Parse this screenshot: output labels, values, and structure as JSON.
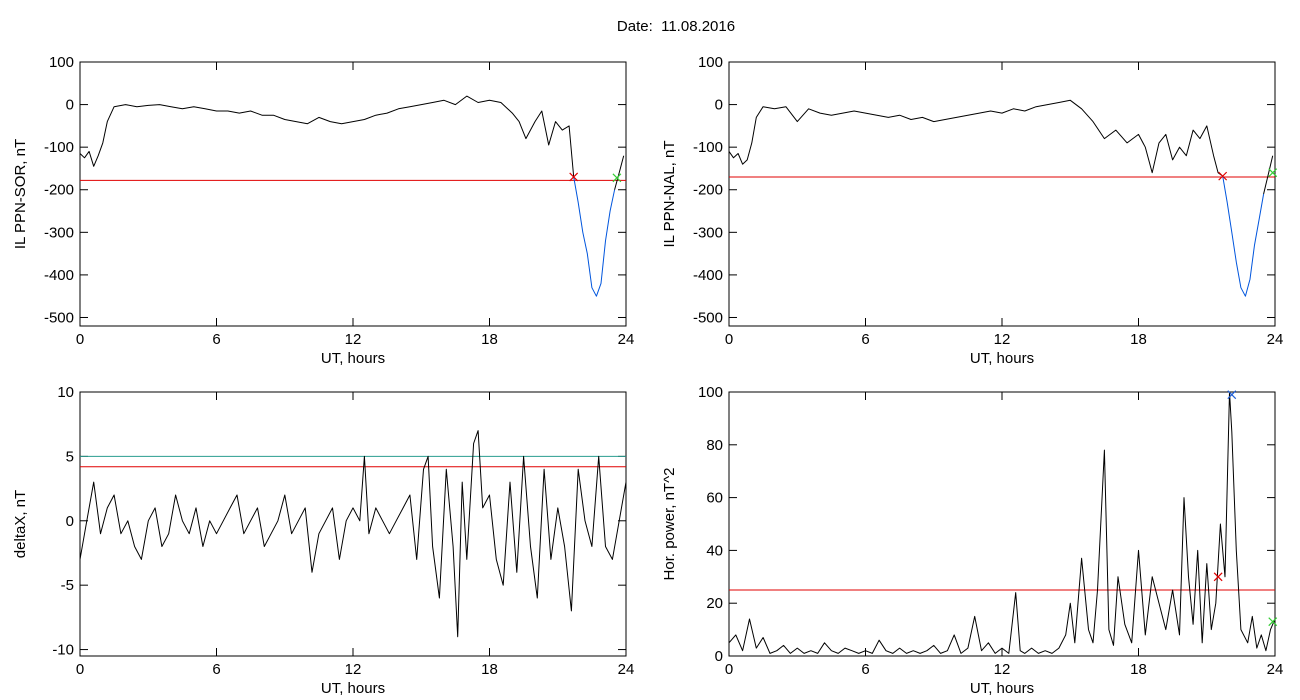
{
  "title": "Date:  11.08.2016",
  "chart_data": [
    {
      "type": "line",
      "ylabel": "IL PPN-SOR, nT",
      "xlabel": "UT, hours",
      "xlim": [
        0,
        24
      ],
      "ylim": [
        -520,
        100
      ],
      "xticks": [
        0,
        6,
        12,
        18,
        24
      ],
      "yticks": [
        100,
        0,
        -100,
        -200,
        -300,
        -400,
        -500
      ],
      "threshold": -178,
      "series": [
        {
          "x": [
            0,
            0.2,
            0.4,
            0.6,
            0.8,
            1,
            1.2,
            1.5,
            2,
            2.5,
            3,
            3.5,
            4,
            4.5,
            5,
            5.5,
            6,
            6.5,
            7,
            7.5,
            8,
            8.5,
            9,
            9.5,
            10,
            10.5,
            11,
            11.5,
            12,
            12.5,
            13,
            13.5,
            14,
            14.5,
            15,
            15.5,
            16,
            16.5,
            17,
            17.5,
            18,
            18.5,
            19,
            19.3,
            19.6,
            20,
            20.3,
            20.6,
            20.9,
            21.2,
            21.5,
            21.7
          ],
          "y": [
            -115,
            -125,
            -110,
            -145,
            -120,
            -90,
            -40,
            -5,
            0,
            -5,
            -2,
            0,
            -5,
            -10,
            -5,
            -10,
            -15,
            -15,
            -20,
            -15,
            -25,
            -25,
            -35,
            -40,
            -45,
            -30,
            -40,
            -45,
            -40,
            -35,
            -25,
            -20,
            -10,
            -5,
            0,
            5,
            10,
            0,
            20,
            5,
            10,
            5,
            -20,
            -40,
            -80,
            -40,
            -15,
            -95,
            -40,
            -60,
            -50,
            -170
          ]
        },
        {
          "x": [
            21.7,
            21.9,
            22.1,
            22.3,
            22.5,
            22.7,
            22.9,
            23.1,
            23.3,
            23.5
          ],
          "y": [
            -170,
            -230,
            -300,
            -350,
            -430,
            -450,
            -420,
            -320,
            -250,
            -200
          ],
          "color": "#0055dd"
        },
        {
          "x": [
            23.5,
            23.7,
            23.9
          ],
          "y": [
            -200,
            -160,
            -120
          ]
        }
      ],
      "markers": [
        {
          "x": 21.7,
          "y": -170,
          "color": "#e00000"
        },
        {
          "x": 23.6,
          "y": -172,
          "color": "#33cc33"
        }
      ]
    },
    {
      "type": "line",
      "ylabel": "IL PPN-NAL, nT",
      "xlabel": "UT, hours",
      "xlim": [
        0,
        24
      ],
      "ylim": [
        -520,
        100
      ],
      "xticks": [
        0,
        6,
        12,
        18,
        24
      ],
      "yticks": [
        100,
        0,
        -100,
        -200,
        -300,
        -400,
        -500
      ],
      "threshold": -170,
      "series": [
        {
          "x": [
            0,
            0.2,
            0.4,
            0.6,
            0.8,
            1,
            1.2,
            1.5,
            2,
            2.5,
            3,
            3.5,
            4,
            4.5,
            5,
            5.5,
            6,
            6.5,
            7,
            7.5,
            8,
            8.5,
            9,
            9.5,
            10,
            10.5,
            11,
            11.5,
            12,
            12.5,
            13,
            13.5,
            14,
            14.5,
            15,
            15.5,
            16,
            16.5,
            17,
            17.5,
            18,
            18.3,
            18.6,
            18.9,
            19.2,
            19.5,
            19.8,
            20.1,
            20.4,
            20.7,
            21,
            21.3,
            21.5,
            21.7
          ],
          "y": [
            -110,
            -125,
            -115,
            -140,
            -130,
            -90,
            -30,
            -5,
            -10,
            -5,
            -40,
            -10,
            -20,
            -25,
            -20,
            -15,
            -20,
            -25,
            -30,
            -25,
            -35,
            -30,
            -40,
            -35,
            -30,
            -25,
            -20,
            -15,
            -20,
            -10,
            -15,
            -5,
            0,
            5,
            10,
            -10,
            -40,
            -80,
            -60,
            -90,
            -70,
            -100,
            -160,
            -90,
            -70,
            -130,
            -100,
            -120,
            -60,
            -80,
            -50,
            -120,
            -160,
            -168
          ]
        },
        {
          "x": [
            21.7,
            21.9,
            22.1,
            22.3,
            22.5,
            22.7,
            22.9,
            23.1,
            23.3,
            23.5
          ],
          "y": [
            -168,
            -230,
            -300,
            -370,
            -430,
            -450,
            -410,
            -330,
            -270,
            -210
          ],
          "color": "#0055dd"
        },
        {
          "x": [
            23.5,
            23.7,
            23.9
          ],
          "y": [
            -210,
            -165,
            -120
          ]
        }
      ],
      "markers": [
        {
          "x": 21.7,
          "y": -168,
          "color": "#e00000"
        },
        {
          "x": 23.9,
          "y": -160,
          "color": "#33cc33"
        }
      ]
    },
    {
      "type": "line",
      "ylabel": "deltaX, nT",
      "xlabel": "UT, hours",
      "xlim": [
        0,
        24
      ],
      "ylim": [
        -10.5,
        10
      ],
      "xticks": [
        0,
        6,
        12,
        18,
        24
      ],
      "yticks": [
        10,
        5,
        0,
        -5,
        -10
      ],
      "threshold": 4.2,
      "threshold2": 5,
      "series": [
        {
          "x": [
            0,
            0.3,
            0.6,
            0.9,
            1.2,
            1.5,
            1.8,
            2.1,
            2.4,
            2.7,
            3,
            3.3,
            3.6,
            3.9,
            4.2,
            4.5,
            4.8,
            5.1,
            5.4,
            5.7,
            6,
            6.3,
            6.6,
            6.9,
            7.2,
            7.5,
            7.8,
            8.1,
            8.4,
            8.7,
            9,
            9.3,
            9.6,
            9.9,
            10.2,
            10.5,
            10.8,
            11.1,
            11.4,
            11.7,
            12,
            12.3,
            12.5,
            12.7,
            13,
            13.3,
            13.6,
            13.9,
            14.2,
            14.5,
            14.8,
            15.1,
            15.3,
            15.5,
            15.8,
            16.1,
            16.4,
            16.6,
            16.8,
            17,
            17.3,
            17.5,
            17.7,
            18,
            18.3,
            18.6,
            18.9,
            19.2,
            19.5,
            19.8,
            20.1,
            20.4,
            20.7,
            21,
            21.3,
            21.6,
            21.9,
            22.2,
            22.5,
            22.8,
            23.1,
            23.4,
            23.7,
            24
          ],
          "y": [
            -3,
            0,
            3,
            -1,
            1,
            2,
            -1,
            0,
            -2,
            -3,
            0,
            1,
            -2,
            -1,
            2,
            0,
            -1,
            1,
            -2,
            0,
            -1,
            0,
            1,
            2,
            -1,
            0,
            1,
            -2,
            -1,
            0,
            2,
            -1,
            0,
            1,
            -4,
            -1,
            0,
            1,
            -3,
            0,
            1,
            0,
            5,
            -1,
            1,
            0,
            -1,
            0,
            1,
            2,
            -3,
            4,
            5,
            -2,
            -6,
            4,
            -2,
            -9,
            3,
            -3,
            6,
            7,
            1,
            2,
            -3,
            -5,
            3,
            -4,
            5,
            -2,
            -6,
            4,
            -3,
            1,
            -2,
            -7,
            4,
            0,
            -2,
            5,
            -2,
            -3,
            0,
            3
          ]
        }
      ]
    },
    {
      "type": "line",
      "ylabel": "Hor. power, nT^2",
      "xlabel": "UT, hours",
      "xlim": [
        0,
        24
      ],
      "ylim": [
        0,
        100
      ],
      "xticks": [
        0,
        6,
        12,
        18,
        24
      ],
      "yticks": [
        0,
        20,
        40,
        60,
        80,
        100
      ],
      "threshold": 25,
      "series": [
        {
          "x": [
            0,
            0.3,
            0.6,
            0.9,
            1.2,
            1.5,
            1.8,
            2.1,
            2.4,
            2.7,
            3,
            3.3,
            3.6,
            3.9,
            4.2,
            4.5,
            4.8,
            5.1,
            5.4,
            5.7,
            6,
            6.3,
            6.6,
            6.9,
            7.2,
            7.5,
            7.8,
            8.1,
            8.4,
            8.7,
            9,
            9.3,
            9.6,
            9.9,
            10.2,
            10.5,
            10.8,
            11.1,
            11.4,
            11.7,
            12,
            12.3,
            12.6,
            12.8,
            13,
            13.3,
            13.6,
            13.9,
            14.2,
            14.5,
            14.8,
            15,
            15.2,
            15.5,
            15.8,
            16,
            16.2,
            16.5,
            16.7,
            16.9,
            17.1,
            17.4,
            17.7,
            18,
            18.3,
            18.6,
            18.9,
            19.2,
            19.5,
            19.8,
            20,
            20.2,
            20.4,
            20.6,
            20.8,
            21,
            21.2,
            21.4,
            21.6,
            21.8,
            22,
            22.1,
            22.3,
            22.5,
            22.8,
            23,
            23.2,
            23.4,
            23.6,
            23.8,
            24
          ],
          "y": [
            5,
            8,
            2,
            14,
            3,
            7,
            1,
            2,
            4,
            1,
            3,
            1,
            2,
            1,
            5,
            2,
            1,
            3,
            2,
            1,
            2,
            1,
            6,
            2,
            1,
            3,
            1,
            2,
            1,
            2,
            4,
            1,
            2,
            8,
            1,
            3,
            15,
            2,
            5,
            1,
            3,
            1,
            24,
            2,
            1,
            3,
            1,
            2,
            1,
            3,
            8,
            20,
            5,
            37,
            10,
            5,
            25,
            78,
            10,
            4,
            30,
            12,
            5,
            40,
            8,
            30,
            20,
            10,
            25,
            8,
            60,
            30,
            12,
            40,
            5,
            35,
            10,
            20,
            50,
            30,
            100,
            85,
            40,
            10,
            5,
            15,
            3,
            8,
            2,
            10,
            14
          ]
        }
      ],
      "markers": [
        {
          "x": 21.5,
          "y": 30,
          "color": "#e00000"
        },
        {
          "x": 22.1,
          "y": 99,
          "color": "#1f5fd6"
        },
        {
          "x": 23.9,
          "y": 13,
          "color": "#33cc33"
        }
      ]
    }
  ]
}
